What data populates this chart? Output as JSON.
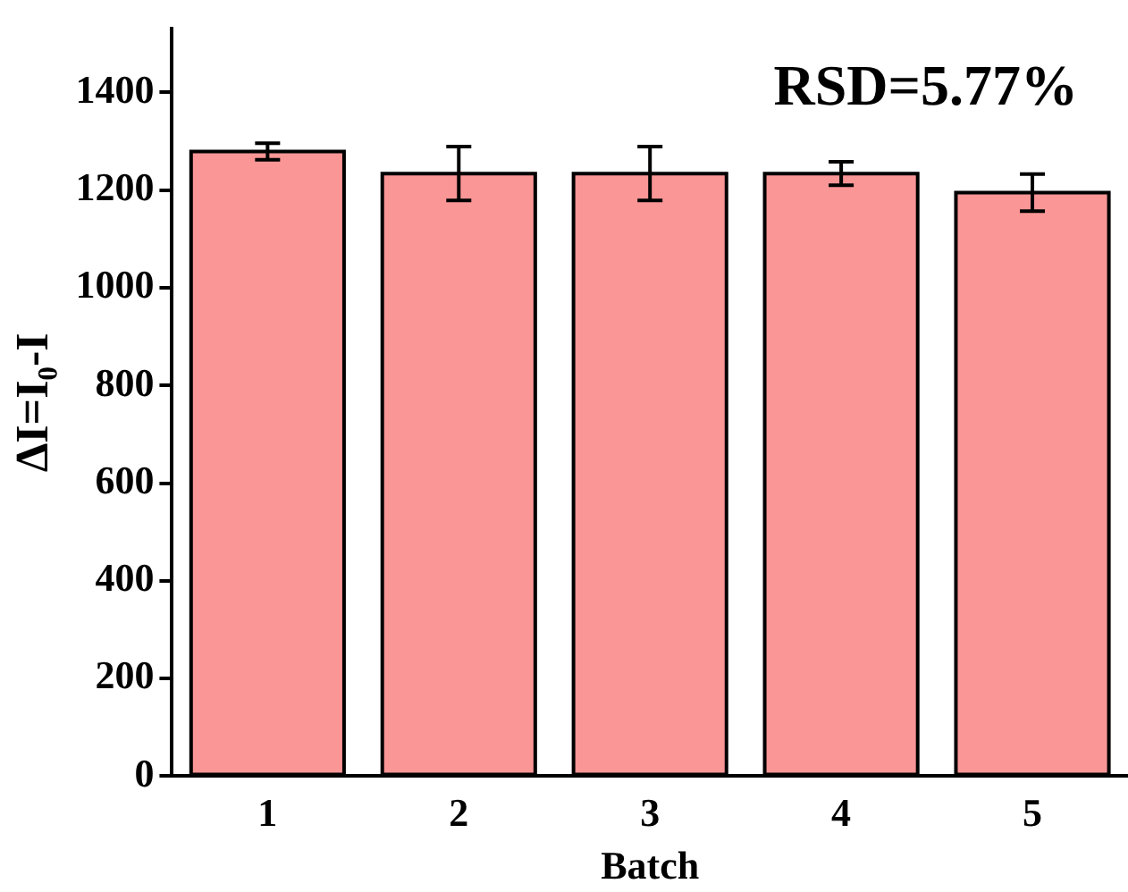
{
  "chart_data": {
    "type": "bar",
    "xlabel": "Batch",
    "ylabel": "ΔI=I₀-I",
    "categories": [
      "1",
      "2",
      "3",
      "4",
      "5"
    ],
    "values": [
      1279,
      1234,
      1234,
      1234,
      1195
    ],
    "errors": [
      17,
      55,
      55,
      24,
      38
    ],
    "color": "#fb9696",
    "ylim": [
      0,
      1530
    ],
    "yticks": [
      0,
      200,
      400,
      600,
      800,
      1000,
      1200,
      1400
    ],
    "annotations": [
      "RSD=5.77%"
    ],
    "grid": false,
    "legend": false
  }
}
